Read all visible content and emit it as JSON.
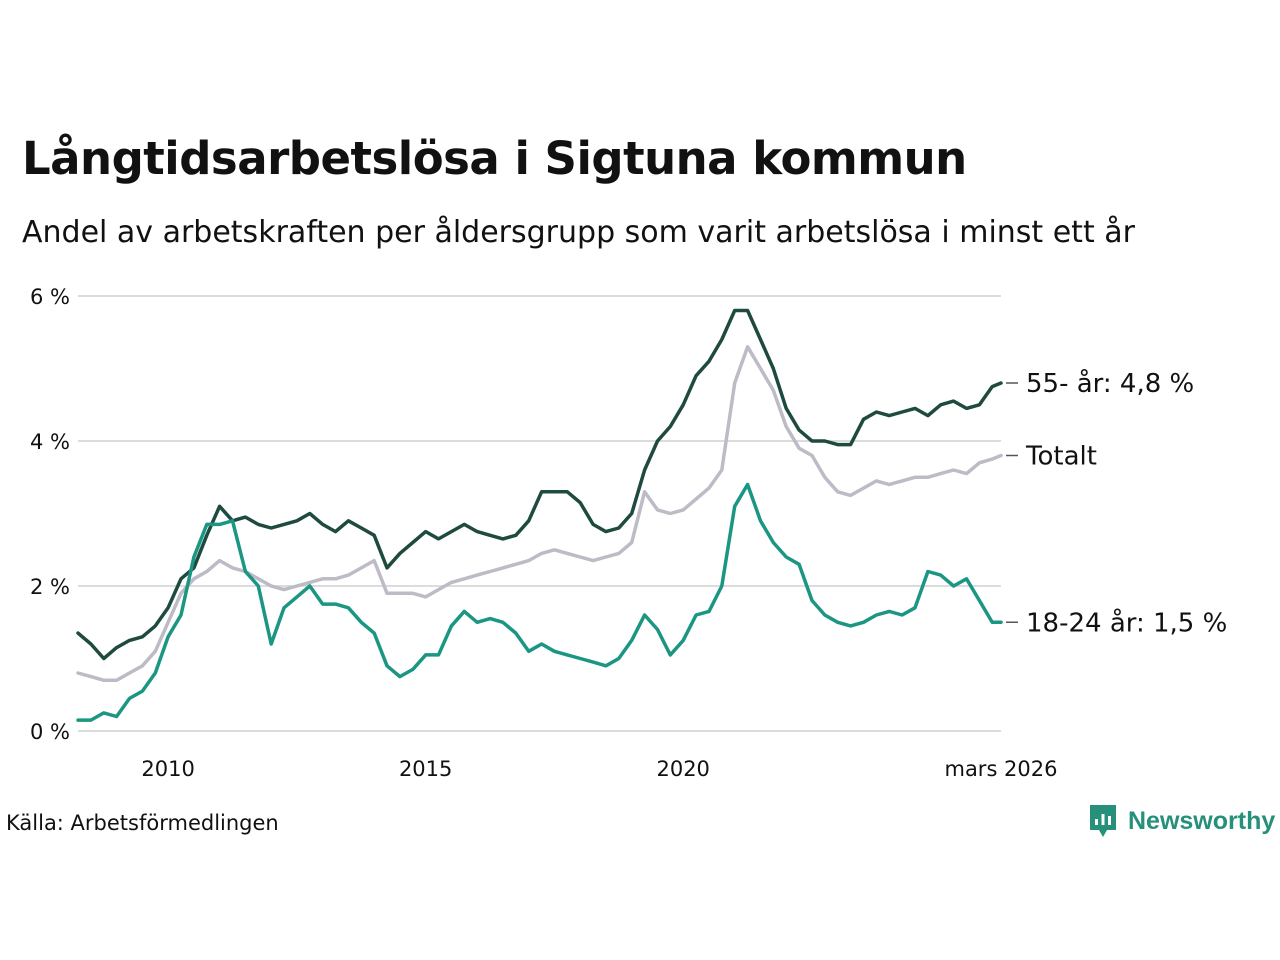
{
  "header": {
    "title": "Långtidsarbetslösa i Sigtuna kommun",
    "subtitle": "Andel av arbetskraften per åldersgrupp som varit arbetslösa i minst ett år"
  },
  "footer": {
    "source": "Källa: Arbetsförmedlingen",
    "brand": "Newsworthy"
  },
  "colors": {
    "brand": "#26907a",
    "grid": "#dcdcdc"
  },
  "chart_data": {
    "type": "line",
    "title": "Långtidsarbetslösa i Sigtuna kommun",
    "ylabel": "",
    "xlabel": "",
    "xlim": [
      2008.25,
      2026.17
    ],
    "ylim": [
      0,
      6
    ],
    "yticks": [
      0,
      2,
      4,
      6
    ],
    "ytick_labels": [
      "0 %",
      "2 %",
      "4 %",
      "6 %"
    ],
    "xticks": [
      2010,
      2015,
      2020,
      2026.17
    ],
    "xtick_labels": [
      "2010",
      "2015",
      "2020",
      "mars 2026"
    ],
    "grid": true,
    "series": [
      {
        "name": "Totalt",
        "label": "Totalt",
        "color": "#bdbbc6",
        "x": [
          2008.25,
          2008.5,
          2008.75,
          2009,
          2009.25,
          2009.5,
          2009.75,
          2010,
          2010.25,
          2010.5,
          2010.75,
          2011,
          2011.25,
          2011.5,
          2011.75,
          2012,
          2012.25,
          2012.5,
          2012.75,
          2013,
          2013.25,
          2013.5,
          2013.75,
          2014,
          2014.25,
          2014.5,
          2014.75,
          2015,
          2015.25,
          2015.5,
          2015.75,
          2016,
          2016.25,
          2016.5,
          2016.75,
          2017,
          2017.25,
          2017.5,
          2017.75,
          2018,
          2018.25,
          2018.5,
          2018.75,
          2019,
          2019.25,
          2019.5,
          2019.75,
          2020,
          2020.25,
          2020.5,
          2020.75,
          2021,
          2021.25,
          2021.5,
          2021.75,
          2022,
          2022.25,
          2022.5,
          2022.75,
          2023,
          2023.25,
          2023.5,
          2023.75,
          2024,
          2024.25,
          2024.5,
          2024.75,
          2025,
          2025.25,
          2025.5,
          2025.75,
          2026,
          2026.17
        ],
        "values": [
          0.8,
          0.75,
          0.7,
          0.7,
          0.8,
          0.9,
          1.1,
          1.5,
          1.9,
          2.1,
          2.2,
          2.35,
          2.25,
          2.2,
          2.1,
          2.0,
          1.95,
          2.0,
          2.05,
          2.1,
          2.1,
          2.15,
          2.25,
          2.35,
          1.9,
          1.9,
          1.9,
          1.85,
          1.95,
          2.05,
          2.1,
          2.15,
          2.2,
          2.25,
          2.3,
          2.35,
          2.45,
          2.5,
          2.45,
          2.4,
          2.35,
          2.4,
          2.45,
          2.6,
          3.3,
          3.05,
          3.0,
          3.05,
          3.2,
          3.35,
          3.6,
          4.8,
          5.3,
          5.0,
          4.7,
          4.2,
          3.9,
          3.8,
          3.5,
          3.3,
          3.25,
          3.35,
          3.45,
          3.4,
          3.45,
          3.5,
          3.5,
          3.55,
          3.6,
          3.55,
          3.7,
          3.75,
          3.8
        ]
      },
      {
        "name": "55- år",
        "label": "55- år: 4,8 %",
        "color": "#1f4a40",
        "x": [
          2008.25,
          2008.5,
          2008.75,
          2009,
          2009.25,
          2009.5,
          2009.75,
          2010,
          2010.25,
          2010.5,
          2010.75,
          2011,
          2011.25,
          2011.5,
          2011.75,
          2012,
          2012.25,
          2012.5,
          2012.75,
          2013,
          2013.25,
          2013.5,
          2013.75,
          2014,
          2014.25,
          2014.5,
          2014.75,
          2015,
          2015.25,
          2015.5,
          2015.75,
          2016,
          2016.25,
          2016.5,
          2016.75,
          2017,
          2017.25,
          2017.5,
          2017.75,
          2018,
          2018.25,
          2018.5,
          2018.75,
          2019,
          2019.25,
          2019.5,
          2019.75,
          2020,
          2020.25,
          2020.5,
          2020.75,
          2021,
          2021.25,
          2021.5,
          2021.75,
          2022,
          2022.25,
          2022.5,
          2022.75,
          2023,
          2023.25,
          2023.5,
          2023.75,
          2024,
          2024.25,
          2024.5,
          2024.75,
          2025,
          2025.25,
          2025.5,
          2025.75,
          2026,
          2026.17
        ],
        "values": [
          1.35,
          1.2,
          1.0,
          1.15,
          1.25,
          1.3,
          1.45,
          1.7,
          2.1,
          2.25,
          2.7,
          3.1,
          2.9,
          2.95,
          2.85,
          2.8,
          2.85,
          2.9,
          3.0,
          2.85,
          2.75,
          2.9,
          2.8,
          2.7,
          2.25,
          2.45,
          2.6,
          2.75,
          2.65,
          2.75,
          2.85,
          2.75,
          2.7,
          2.65,
          2.7,
          2.9,
          3.3,
          3.3,
          3.3,
          3.15,
          2.85,
          2.75,
          2.8,
          3.0,
          3.6,
          4.0,
          4.2,
          4.5,
          4.9,
          5.1,
          5.4,
          5.8,
          5.8,
          5.4,
          5.0,
          4.45,
          4.15,
          4.0,
          4.0,
          3.95,
          3.95,
          4.3,
          4.4,
          4.35,
          4.4,
          4.45,
          4.35,
          4.5,
          4.55,
          4.45,
          4.5,
          4.75,
          4.8
        ]
      },
      {
        "name": "18-24 år",
        "label": "18-24 år: 1,5 %",
        "color": "#1a9683",
        "x": [
          2008.25,
          2008.5,
          2008.75,
          2009,
          2009.25,
          2009.5,
          2009.75,
          2010,
          2010.25,
          2010.5,
          2010.75,
          2011,
          2011.25,
          2011.5,
          2011.75,
          2012,
          2012.25,
          2012.5,
          2012.75,
          2013,
          2013.25,
          2013.5,
          2013.75,
          2014,
          2014.25,
          2014.5,
          2014.75,
          2015,
          2015.25,
          2015.5,
          2015.75,
          2016,
          2016.25,
          2016.5,
          2016.75,
          2017,
          2017.25,
          2017.5,
          2017.75,
          2018,
          2018.25,
          2018.5,
          2018.75,
          2019,
          2019.25,
          2019.5,
          2019.75,
          2020,
          2020.25,
          2020.5,
          2020.75,
          2021,
          2021.25,
          2021.5,
          2021.75,
          2022,
          2022.25,
          2022.5,
          2022.75,
          2023,
          2023.25,
          2023.5,
          2023.75,
          2024,
          2024.25,
          2024.5,
          2024.75,
          2025,
          2025.25,
          2025.5,
          2025.75,
          2026,
          2026.17
        ],
        "values": [
          0.15,
          0.15,
          0.25,
          0.2,
          0.45,
          0.55,
          0.8,
          1.3,
          1.6,
          2.4,
          2.85,
          2.85,
          2.9,
          2.2,
          2.0,
          1.2,
          1.7,
          1.85,
          2.0,
          1.75,
          1.75,
          1.7,
          1.5,
          1.35,
          0.9,
          0.75,
          0.85,
          1.05,
          1.05,
          1.45,
          1.65,
          1.5,
          1.55,
          1.5,
          1.35,
          1.1,
          1.2,
          1.1,
          1.05,
          1.0,
          0.95,
          0.9,
          1.0,
          1.25,
          1.6,
          1.4,
          1.05,
          1.25,
          1.6,
          1.65,
          2.0,
          3.1,
          3.4,
          2.9,
          2.6,
          2.4,
          2.3,
          1.8,
          1.6,
          1.5,
          1.45,
          1.5,
          1.6,
          1.65,
          1.6,
          1.7,
          2.2,
          2.15,
          2.0,
          2.1,
          1.8,
          1.5,
          1.5
        ]
      }
    ]
  }
}
